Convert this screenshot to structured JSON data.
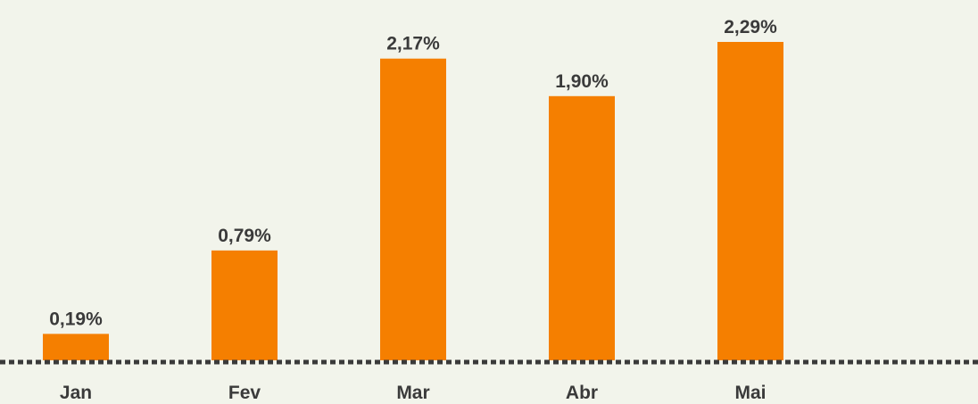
{
  "chart_data": {
    "type": "bar",
    "categories": [
      "Jan",
      "Fev",
      "Mar",
      "Abr",
      "Mai"
    ],
    "values": [
      0.19,
      0.79,
      2.17,
      1.9,
      2.29
    ],
    "value_labels": [
      "0,19%",
      "0,79%",
      "2,17%",
      "1,90%",
      "2,29%"
    ],
    "color": "#f57f00"
  }
}
